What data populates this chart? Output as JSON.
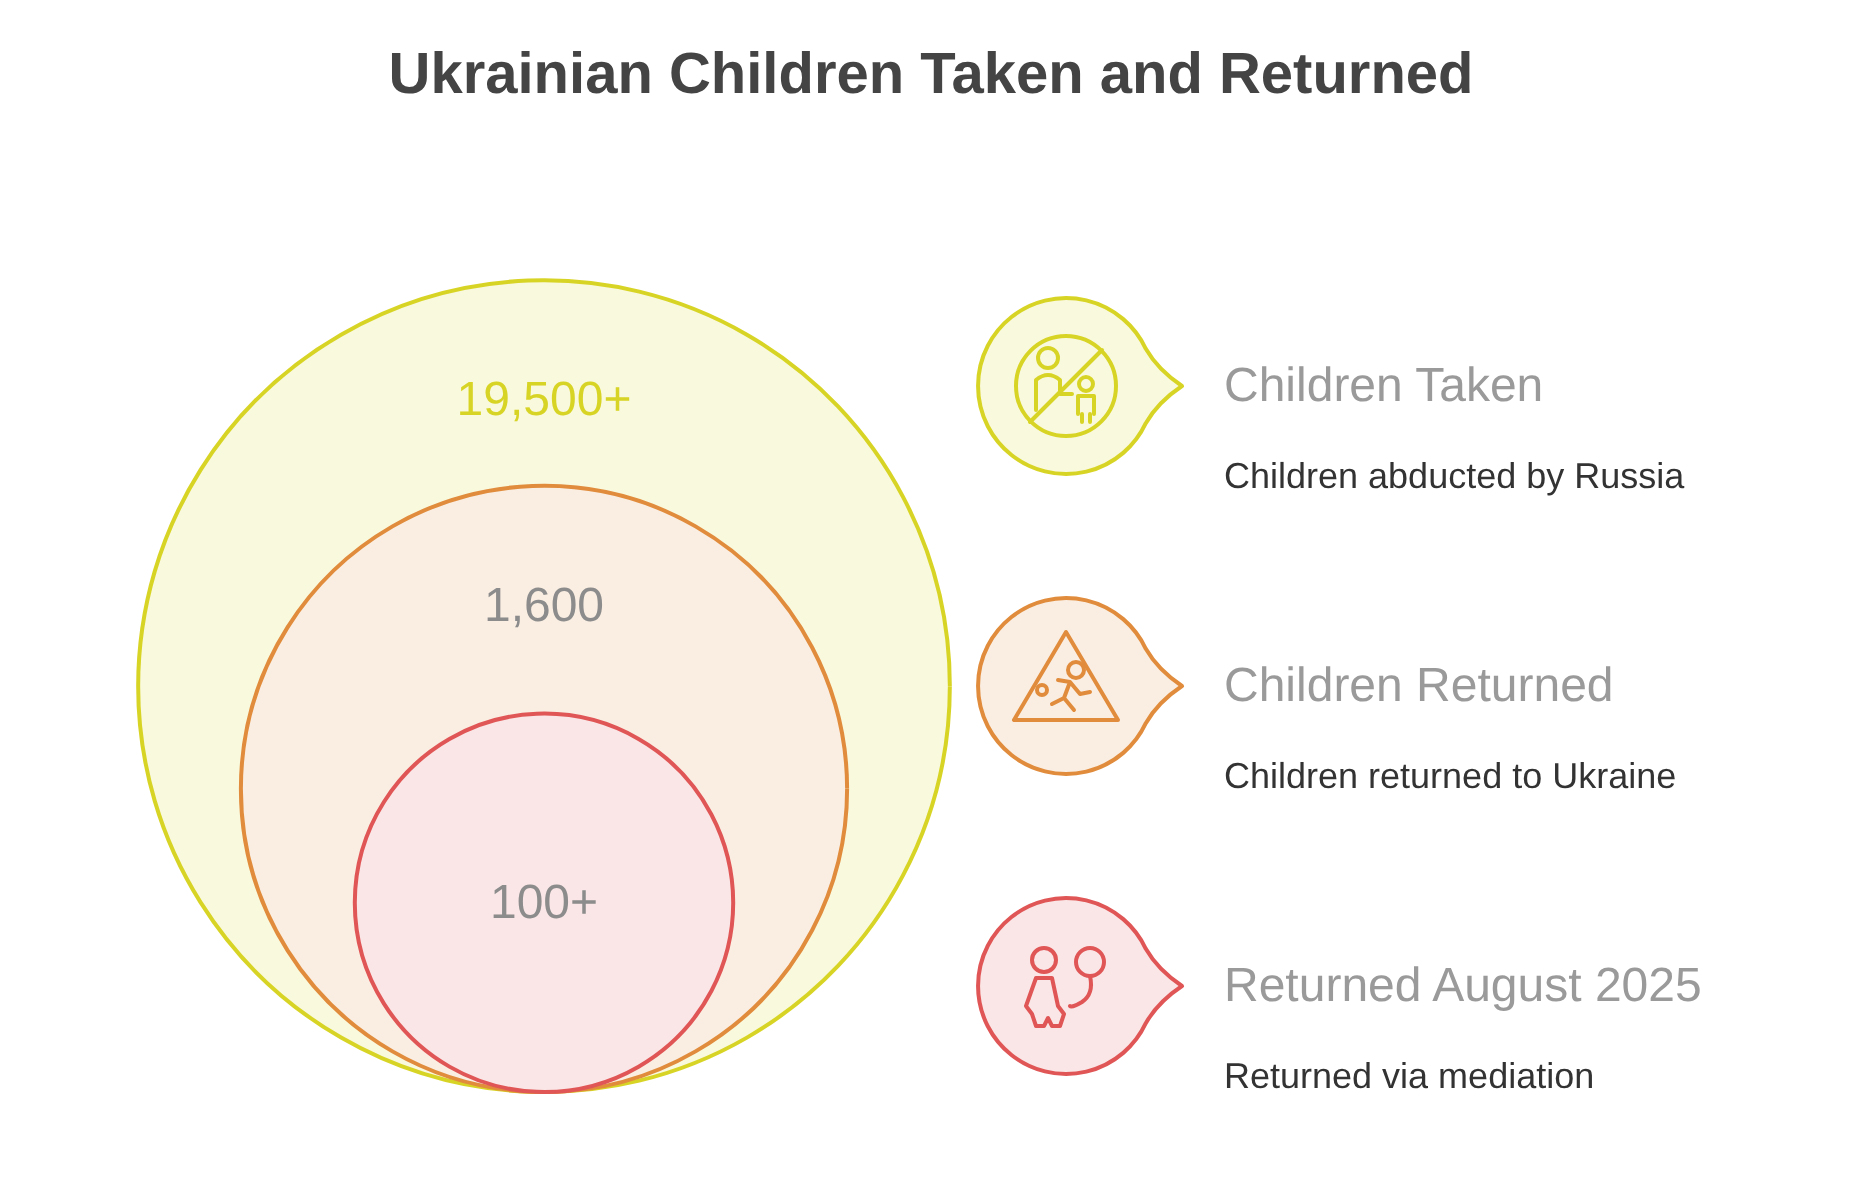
{
  "chart_data": {
    "type": "other",
    "title": "Ukrainian Children Taken and Returned",
    "categories": [
      "Children Taken",
      "Children Returned",
      "Returned August 2025"
    ],
    "values": [
      19500,
      1600,
      100
    ],
    "value_labels": [
      "19,500+",
      "1,600",
      "100+"
    ],
    "colors": [
      "#d8d426",
      "#e08c3c",
      "#e05656"
    ],
    "annotations": [
      "Children abducted by Russia",
      "Children returned to Ukraine",
      "Returned via mediation"
    ]
  }
}
